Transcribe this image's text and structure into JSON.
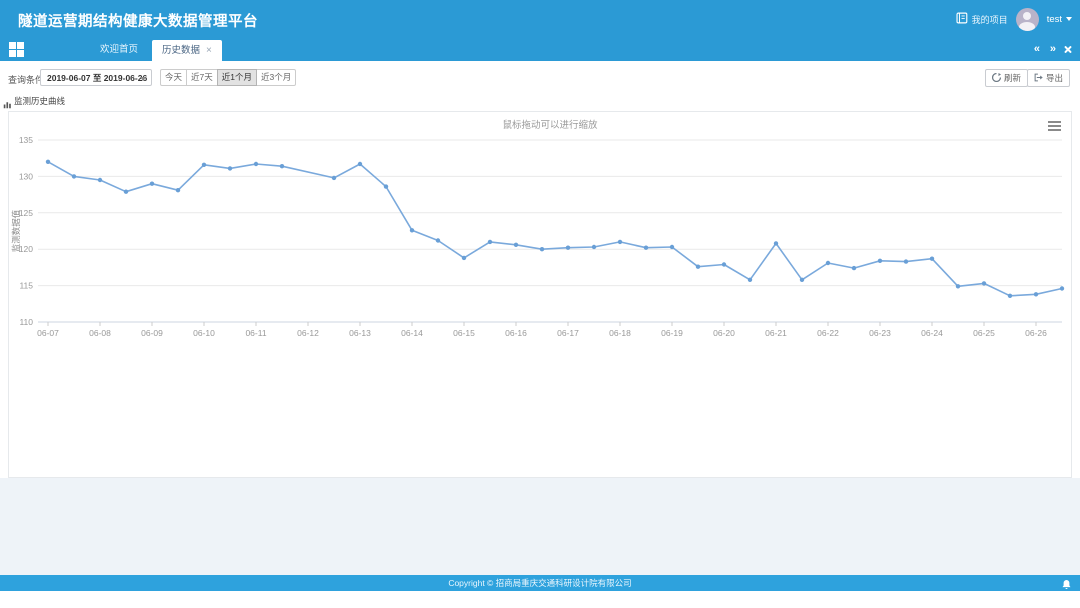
{
  "header": {
    "title": "隧道运营期结构健康大数据管理平台",
    "project_label": "我的项目",
    "username": "test"
  },
  "tabs": {
    "home": "欢迎首页",
    "history": "历史数据",
    "close": "×",
    "nav_back": "«",
    "nav_forward": "»"
  },
  "toolbar": {
    "query_label": "查询条件",
    "date_range": "2019-06-07 至 2019-06-26",
    "quick_filters": [
      "今天",
      "近7天",
      "近1个月",
      "近3个月"
    ],
    "active_filter": "近1个月",
    "refresh_label": "刷新",
    "export_label": "导出"
  },
  "section": {
    "chart_section_title": "监测历史曲线"
  },
  "footer": {
    "copyright": "Copyright © 招商局重庆交通科研设计院有限公司"
  },
  "chart_data": {
    "type": "line",
    "title": "鼠标拖动可以进行缩放",
    "ylabel": "监测数据值",
    "ylim": [
      110,
      135
    ],
    "y_ticks": [
      135,
      130,
      125,
      120,
      115,
      110
    ],
    "x_tick_labels": [
      "06-07",
      "06-08",
      "06-09",
      "06-10",
      "06-11",
      "06-12",
      "06-13",
      "06-14",
      "06-15",
      "06-16",
      "06-17",
      "06-18",
      "06-19",
      "06-20",
      "06-21",
      "06-22",
      "06-23",
      "06-24",
      "06-25",
      "06-26"
    ],
    "x_encoding": "days_from_first_date",
    "grid": true,
    "legend": "none",
    "colors": {
      "line": "#7aa9dc",
      "marker": "#699fd6",
      "grid": "#e9e9e9",
      "axis": "#ccd6e0",
      "tick_text": "#999999",
      "title_text": "#9a9a9a"
    },
    "series": [
      {
        "name": "监测历史曲线",
        "points": [
          [
            0,
            132.0
          ],
          [
            0.5,
            130.0
          ],
          [
            1,
            129.5
          ],
          [
            1.5,
            127.9
          ],
          [
            2,
            129.0
          ],
          [
            2.5,
            128.1
          ],
          [
            3,
            131.6
          ],
          [
            3.5,
            131.1
          ],
          [
            4,
            131.7
          ],
          [
            4.5,
            131.4
          ],
          [
            5.5,
            129.8
          ],
          [
            6,
            131.7
          ],
          [
            6.5,
            128.6
          ],
          [
            7,
            122.6
          ],
          [
            7.5,
            121.2
          ],
          [
            8,
            118.8
          ],
          [
            8.5,
            121.0
          ],
          [
            9,
            120.6
          ],
          [
            9.5,
            120.0
          ],
          [
            10,
            120.2
          ],
          [
            10.5,
            120.3
          ],
          [
            11,
            121.0
          ],
          [
            11.5,
            120.2
          ],
          [
            12,
            120.3
          ],
          [
            12.5,
            117.6
          ],
          [
            13,
            117.9
          ],
          [
            13.5,
            115.8
          ],
          [
            14,
            120.8
          ],
          [
            14.5,
            115.8
          ],
          [
            15,
            118.1
          ],
          [
            15.5,
            117.4
          ],
          [
            16,
            118.4
          ],
          [
            16.5,
            118.3
          ],
          [
            17,
            118.7
          ],
          [
            17.5,
            114.9
          ],
          [
            18,
            115.3
          ],
          [
            18.5,
            113.6
          ],
          [
            19,
            113.8
          ],
          [
            19.5,
            114.6
          ]
        ]
      }
    ]
  }
}
